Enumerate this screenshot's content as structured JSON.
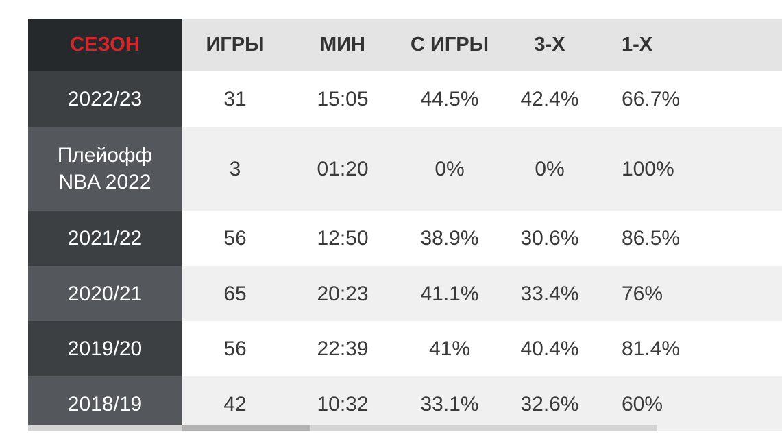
{
  "table": {
    "headers": [
      "СЕЗОН",
      "ИГРЫ",
      "МИН",
      "С ИГРЫ",
      "3-Х",
      "1-Х"
    ],
    "rows": [
      [
        "2022/23",
        "31",
        "15:05",
        "44.5%",
        "42.4%",
        "66.7%"
      ],
      [
        "Плейофф NBA 2022",
        "3",
        "01:20",
        "0%",
        "0%",
        "100%"
      ],
      [
        "2021/22",
        "56",
        "12:50",
        "38.9%",
        "30.6%",
        "86.5%"
      ],
      [
        "2020/21",
        "65",
        "20:23",
        "41.1%",
        "33.4%",
        "76%"
      ],
      [
        "2019/20",
        "56",
        "22:39",
        "41%",
        "40.4%",
        "81.4%"
      ],
      [
        "2018/19",
        "42",
        "10:32",
        "33.1%",
        "32.6%",
        "60%"
      ]
    ]
  },
  "colors": {
    "header_season_text": "#d7262b",
    "season_column_dark": "#3d4043",
    "season_column_light": "#54575b"
  }
}
